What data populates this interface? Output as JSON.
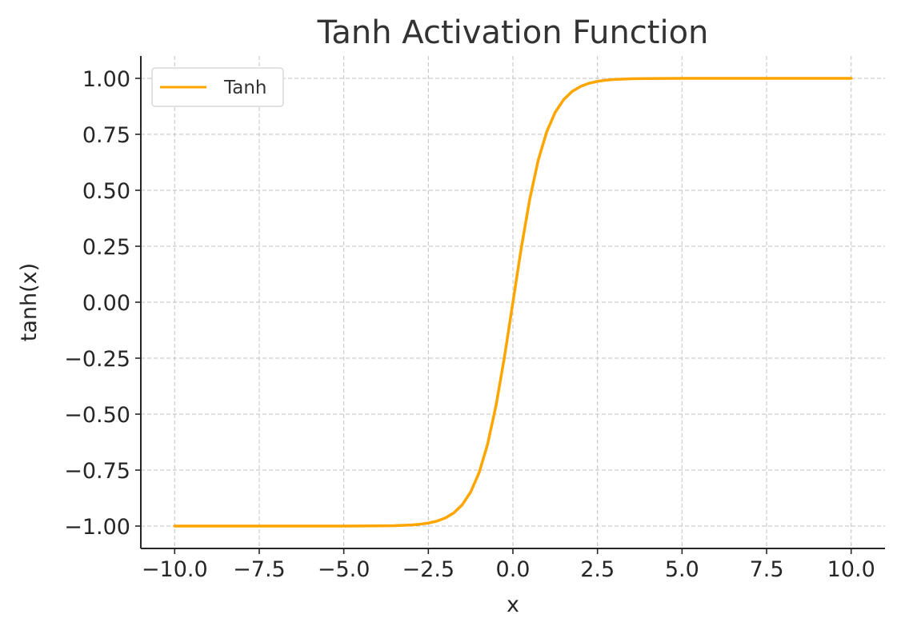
{
  "chart_data": {
    "type": "line",
    "title": "Tanh Activation Function",
    "xlabel": "x",
    "ylabel": "tanh(x)",
    "xlim": [
      -11.0,
      11.0
    ],
    "ylim": [
      -1.1,
      1.1
    ],
    "x_ticks": [
      -10.0,
      -7.5,
      -5.0,
      -2.5,
      0.0,
      2.5,
      5.0,
      7.5,
      10.0
    ],
    "x_tick_labels": [
      "−10.0",
      "−7.5",
      "−5.0",
      "−2.5",
      "0.0",
      "2.5",
      "5.0",
      "7.5",
      "10.0"
    ],
    "y_ticks": [
      -1.0,
      -0.75,
      -0.5,
      -0.25,
      0.0,
      0.25,
      0.5,
      0.75,
      1.0
    ],
    "y_tick_labels": [
      "−1.00",
      "−0.75",
      "−0.50",
      "−0.25",
      "0.00",
      "0.25",
      "0.50",
      "0.75",
      "1.00"
    ],
    "grid": true,
    "legend_position": "top-left",
    "series": [
      {
        "name": "Tanh",
        "color": "#FFA500",
        "x": [
          -10.0,
          -9.0,
          -8.0,
          -7.0,
          -6.0,
          -5.0,
          -4.0,
          -3.5,
          -3.0,
          -2.75,
          -2.5,
          -2.25,
          -2.0,
          -1.75,
          -1.5,
          -1.25,
          -1.0,
          -0.75,
          -0.5,
          -0.25,
          0.0,
          0.25,
          0.5,
          0.75,
          1.0,
          1.25,
          1.5,
          1.75,
          2.0,
          2.25,
          2.5,
          2.75,
          3.0,
          3.5,
          4.0,
          5.0,
          6.0,
          7.0,
          8.0,
          9.0,
          10.0
        ],
        "y": [
          -1.0,
          -1.0,
          -1.0,
          -1.0,
          -1.0,
          -0.9999,
          -0.9993,
          -0.9982,
          -0.9951,
          -0.9918,
          -0.9866,
          -0.978,
          -0.964,
          -0.9414,
          -0.9051,
          -0.8483,
          -0.7616,
          -0.6351,
          -0.4621,
          -0.2449,
          0.0,
          0.2449,
          0.4621,
          0.6351,
          0.7616,
          0.8483,
          0.9051,
          0.9414,
          0.964,
          0.978,
          0.9866,
          0.9918,
          0.9951,
          0.9982,
          0.9993,
          0.9999,
          1.0,
          1.0,
          1.0,
          1.0,
          1.0
        ]
      }
    ]
  }
}
